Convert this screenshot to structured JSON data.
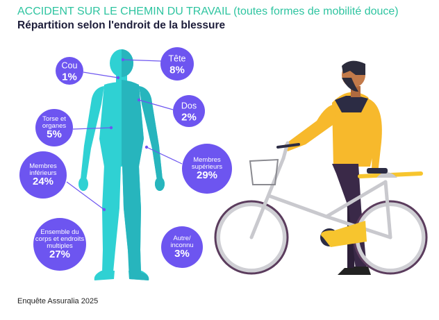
{
  "header": {
    "title": "ACCIDENT SUR LE CHEMIN DU TRAVAIL (toutes formes de mobilité douce)",
    "subtitle": "Répartition selon l'endroit de la blessure"
  },
  "footer": {
    "source": "Enquête Assuralia 2025"
  },
  "colors": {
    "title": "#2ec4a0",
    "bubble": "#6d55f0",
    "connector": "#6d55f0",
    "body_light": "#2fd1d3",
    "body_dark": "#27b5bd",
    "subtitle": "#1d1d3a"
  },
  "chart_data": {
    "type": "infographic",
    "title": "ACCIDENT SUR LE CHEMIN DU TRAVAIL (toutes formes de mobilité douce)",
    "subtitle": "Répartition selon l'endroit de la blessure",
    "unit": "%",
    "categories": [
      {
        "id": "tete",
        "lines": [
          "Tête"
        ],
        "value": 8
      },
      {
        "id": "cou",
        "lines": [
          "Cou"
        ],
        "value": 1
      },
      {
        "id": "dos",
        "lines": [
          "Dos"
        ],
        "value": 2
      },
      {
        "id": "torse",
        "lines": [
          "Torse et",
          "organes"
        ],
        "value": 5
      },
      {
        "id": "membres-superieurs",
        "lines": [
          "Membres",
          "supérieurs"
        ],
        "value": 29
      },
      {
        "id": "membres-inferieurs",
        "lines": [
          "Membres",
          "inférieurs"
        ],
        "value": 24
      },
      {
        "id": "ensemble",
        "lines": [
          "Ensemble du",
          "corps et endroits",
          "multiples"
        ],
        "value": 27
      },
      {
        "id": "autre",
        "lines": [
          "Autre/",
          "inconnu"
        ],
        "value": 3
      }
    ]
  }
}
